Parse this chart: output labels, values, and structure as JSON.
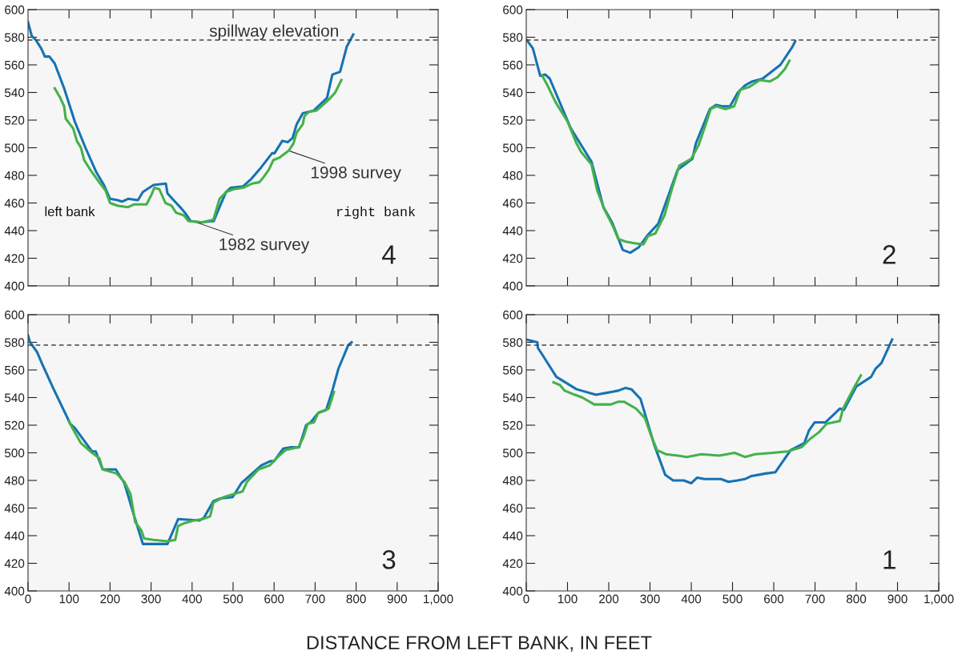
{
  "chart_data": [
    {
      "type": "line",
      "title": "4",
      "tick_labels": "y",
      "xlim": [
        0,
        1000
      ],
      "ylim": [
        400,
        600
      ],
      "xticks": [
        100,
        200,
        300,
        400,
        500,
        600,
        700,
        800,
        900
      ],
      "yticks": [
        400,
        420,
        440,
        460,
        480,
        500,
        520,
        540,
        560,
        580,
        600
      ],
      "marker": "none",
      "line_style": "solid",
      "grid": false,
      "legend": false,
      "ref_lines": [
        {
          "axis": "y",
          "value": 578,
          "label": "spillway elevation",
          "color": "#444444",
          "line_style": "dashed"
        }
      ],
      "annotations": [
        "left bank",
        "right bank",
        {
          "text": "1998 survey",
          "x": 634,
          "y": 498
        },
        {
          "text": "1982 survey",
          "x": 410,
          "y": 446
        }
      ],
      "series": [
        {
          "color": "#1573b3",
          "x": [
            0,
            9,
            19,
            32,
            41,
            52,
            65,
            88,
            114,
            140,
            167,
            185,
            200,
            219,
            229,
            244,
            268,
            280,
            306,
            336,
            340,
            355,
            374,
            385,
            396,
            422,
            453,
            464,
            483,
            494,
            524,
            543,
            569,
            595,
            601,
            620,
            633,
            645,
            655,
            670,
            697,
            729,
            742,
            761,
            777,
            793
          ],
          "values": [
            591,
            581,
            578,
            572,
            566,
            566,
            561,
            543,
            519,
            500,
            482,
            473,
            463,
            462,
            461,
            463,
            462,
            468,
            473,
            474,
            467,
            462,
            456,
            452,
            447,
            446,
            447,
            455,
            468,
            471,
            472,
            477,
            486,
            496,
            496,
            505,
            504,
            507,
            517,
            525,
            527,
            536,
            553,
            555,
            573,
            582
          ]
        },
        {
          "color": "#44b14a",
          "x": [
            65,
            77,
            88,
            92,
            110,
            119,
            129,
            137,
            152,
            171,
            189,
            200,
            219,
            244,
            259,
            289,
            301,
            308,
            320,
            335,
            350,
            361,
            380,
            391,
            426,
            452,
            467,
            483,
            501,
            524,
            546,
            564,
            575,
            587,
            598,
            614,
            636,
            647,
            655,
            670,
            674,
            685,
            704,
            734,
            749,
            764
          ],
          "values": [
            543,
            537,
            530,
            521,
            514,
            505,
            500,
            491,
            484,
            476,
            469,
            460,
            458,
            457,
            459,
            459,
            466,
            471,
            470,
            460,
            458,
            453,
            451,
            447,
            446,
            448,
            463,
            468,
            470,
            471,
            474,
            475,
            479,
            484,
            491,
            493,
            498,
            503,
            511,
            517,
            523,
            526,
            527,
            535,
            540,
            549
          ]
        }
      ]
    },
    {
      "type": "line",
      "title": "2",
      "tick_labels": "y",
      "xlim": [
        0,
        1000
      ],
      "ylim": [
        400,
        600
      ],
      "xticks": [
        100,
        200,
        300,
        400,
        500,
        600,
        700,
        800,
        900
      ],
      "yticks": [
        400,
        420,
        440,
        460,
        480,
        500,
        520,
        540,
        560,
        580,
        600
      ],
      "marker": "none",
      "line_style": "solid",
      "grid": false,
      "legend": false,
      "ref_lines": [
        {
          "axis": "y",
          "value": 578,
          "color": "#444444",
          "line_style": "dashed"
        }
      ],
      "series": [
        {
          "color": "#1573b3",
          "x": [
            1,
            16,
            34,
            46,
            57,
            108,
            158,
            187,
            208,
            234,
            252,
            273,
            295,
            320,
            367,
            403,
            411,
            445,
            460,
            475,
            494,
            513,
            530,
            548,
            573,
            616,
            645,
            652
          ],
          "values": [
            578,
            572,
            552,
            553,
            550,
            514,
            490,
            457,
            446,
            426,
            424,
            428,
            437,
            445,
            484,
            492,
            503,
            528,
            531,
            530,
            530,
            540,
            545,
            548,
            550,
            560,
            573,
            577
          ]
        },
        {
          "color": "#44b14a",
          "x": [
            39,
            50,
            71,
            100,
            122,
            133,
            158,
            172,
            190,
            212,
            223,
            241,
            259,
            284,
            295,
            313,
            335,
            353,
            371,
            400,
            418,
            434,
            447,
            461,
            483,
            504,
            519,
            541,
            566,
            591,
            609,
            627,
            638
          ],
          "values": [
            552,
            546,
            533,
            519,
            503,
            497,
            488,
            469,
            455,
            442,
            434,
            432,
            431,
            430,
            436,
            438,
            451,
            470,
            487,
            492,
            502,
            516,
            528,
            530,
            528,
            530,
            542,
            544,
            549,
            548,
            551,
            557,
            563
          ]
        }
      ]
    },
    {
      "type": "line",
      "title": "3",
      "xlim": [
        0,
        1000
      ],
      "ylim": [
        400,
        600
      ],
      "xticks": [
        0,
        100,
        200,
        300,
        400,
        500,
        600,
        700,
        800,
        900,
        {
          "value": 1000,
          "label": "1,000"
        }
      ],
      "yticks": [
        400,
        420,
        440,
        460,
        480,
        500,
        520,
        540,
        560,
        580,
        600
      ],
      "marker": "none",
      "line_style": "solid",
      "grid": false,
      "legend": false,
      "ref_lines": [
        {
          "axis": "y",
          "value": 578,
          "color": "#444444",
          "line_style": "dashed"
        }
      ],
      "series": [
        {
          "color": "#1573b3",
          "x": [
            0,
            5,
            22,
            35,
            61,
            103,
            114,
            156,
            165,
            182,
            214,
            235,
            257,
            280,
            306,
            340,
            366,
            418,
            429,
            452,
            469,
            499,
            520,
            569,
            591,
            600,
            622,
            641,
            661,
            678,
            689,
            708,
            727,
            742,
            757,
            781,
            789
          ],
          "values": [
            585,
            580,
            573,
            564,
            547,
            521,
            518,
            501,
            501,
            488,
            488,
            478,
            456,
            434,
            434,
            434,
            452,
            451,
            453,
            465,
            467,
            468,
            478,
            491,
            494,
            494,
            503,
            504,
            504,
            520,
            522,
            529,
            531,
            545,
            561,
            578,
            580
          ]
        },
        {
          "color": "#44b14a",
          "x": [
            99,
            110,
            129,
            156,
            174,
            182,
            216,
            235,
            250,
            261,
            276,
            283,
            306,
            340,
            359,
            366,
            381,
            404,
            426,
            444,
            452,
            478,
            500,
            523,
            534,
            562,
            590,
            609,
            628,
            659,
            671,
            682,
            697,
            708,
            733,
            746
          ],
          "values": [
            523,
            517,
            507,
            500,
            496,
            488,
            485,
            479,
            470,
            450,
            444,
            438,
            437,
            436,
            437,
            447,
            449,
            451,
            452,
            454,
            464,
            468,
            470,
            472,
            479,
            488,
            491,
            497,
            502,
            504,
            511,
            521,
            522,
            529,
            532,
            544
          ]
        }
      ]
    },
    {
      "type": "line",
      "title": "1",
      "xlabel": "DISTANCE FROM LEFT BANK, IN FEET",
      "xlim": [
        0,
        1000
      ],
      "ylim": [
        400,
        600
      ],
      "xticks": [
        0,
        100,
        200,
        300,
        400,
        500,
        600,
        700,
        800,
        900,
        {
          "value": 1000,
          "label": "1,000"
        }
      ],
      "yticks": [
        400,
        420,
        440,
        460,
        480,
        500,
        520,
        540,
        560,
        580,
        600
      ],
      "marker": "none",
      "line_style": "solid",
      "grid": false,
      "legend": false,
      "ref_lines": [
        {
          "axis": "y",
          "value": 578,
          "color": "#444444",
          "line_style": "dashed"
        }
      ],
      "series": [
        {
          "color": "#1573b3",
          "x": [
            0,
            27,
            28,
            39,
            73,
            122,
            169,
            223,
            241,
            255,
            277,
            310,
            337,
            356,
            382,
            400,
            414,
            432,
            472,
            490,
            512,
            530,
            544,
            580,
            604,
            641,
            674,
            685,
            699,
            725,
            743,
            760,
            770,
            800,
            836,
            847,
            861,
            887
          ],
          "values": [
            582,
            580,
            576,
            571,
            555,
            546,
            542,
            545,
            547,
            546,
            539,
            506,
            484,
            480,
            480,
            478,
            482,
            481,
            481,
            479,
            480,
            481,
            483,
            485,
            486,
            502,
            507,
            516,
            522,
            522,
            527,
            532,
            531,
            548,
            555,
            561,
            565,
            582
          ]
        },
        {
          "color": "#44b14a",
          "x": [
            66,
            82,
            93,
            118,
            136,
            165,
            205,
            223,
            237,
            266,
            288,
            302,
            317,
            338,
            367,
            389,
            425,
            468,
            505,
            530,
            555,
            598,
            634,
            667,
            688,
            710,
            728,
            760,
            768,
            782,
            796,
            811
          ],
          "values": [
            551,
            549,
            545,
            542,
            540,
            535,
            535,
            537,
            537,
            532,
            525,
            513,
            502,
            499,
            498,
            497,
            499,
            498,
            500,
            497,
            499,
            500,
            501,
            504,
            510,
            515,
            521,
            523,
            532,
            540,
            548,
            556
          ]
        }
      ]
    }
  ]
}
